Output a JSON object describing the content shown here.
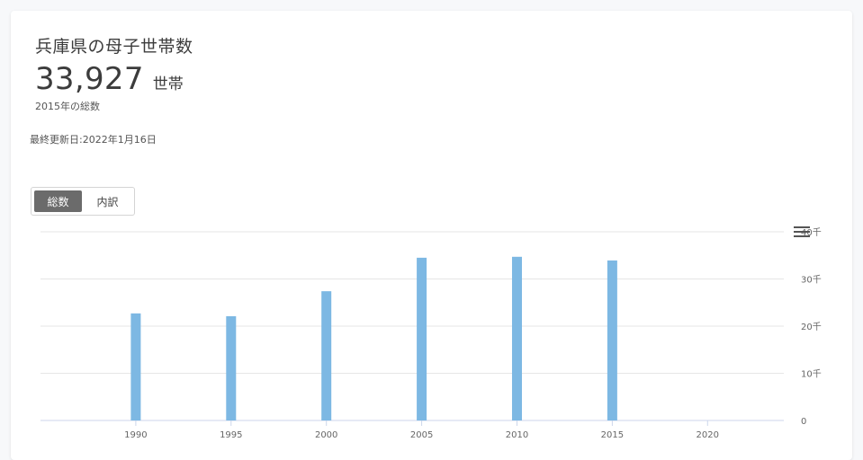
{
  "header": {
    "title": "兵庫県の母子世帯数",
    "value": "33,927",
    "unit": "世帯",
    "subtitle": "2015年の総数",
    "updated": "最終更新日:2022年1月16日"
  },
  "toggle": {
    "options": [
      "総数",
      "内訳"
    ],
    "selected": "総数"
  },
  "colors": {
    "bar": "#7db8e3",
    "grid": "#e6e6e6",
    "axis": "#ccd6eb",
    "tick": "#666666"
  },
  "icons": {
    "menu": "hamburger-menu-icon"
  },
  "chart_data": {
    "type": "bar",
    "x": [
      1990,
      1995,
      2000,
      2005,
      2010,
      2015
    ],
    "x_ticks": [
      "1990",
      "1995",
      "2000",
      "2005",
      "2010",
      "2015",
      "2020"
    ],
    "values": [
      22700,
      22100,
      27400,
      34500,
      34700,
      33927
    ],
    "ylim": [
      0,
      40000
    ],
    "y_ticks": [
      "0",
      "10千",
      "20千",
      "30千",
      "40千"
    ],
    "y_axis_side": "right",
    "grid": true
  }
}
